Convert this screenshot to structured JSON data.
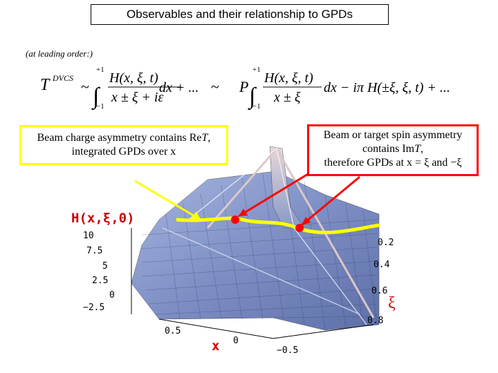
{
  "title": "Observables and their relationship to GPDs",
  "note": "(at leading order:)",
  "formula": {
    "lhs": "T",
    "lhs_sup": "DVCS",
    "sim": "~",
    "int_upper": "+1",
    "int_lower": "−1",
    "frac1_num": "H(x, ξ, t)",
    "frac1_den": "x ± ξ + iε",
    "frac1_dx": "dx + ...",
    "sim2": "~",
    "P": "P",
    "frac2_num": "H(x, ξ, t)",
    "frac2_den": "x ± ξ",
    "frac2_rest": "dx − iπ H(±ξ, ξ, t) + ..."
  },
  "callout_left": {
    "line1": "Beam charge asymmetry contains Re",
    "line1_T": "T",
    "line1_end": ",",
    "line2": "integrated GPDs over x"
  },
  "callout_right": {
    "line1": "Beam or target spin asymmetry",
    "line2": "contains Im",
    "line2_T": "T",
    "line2_end": ",",
    "line3": "therefore GPDs at x = ξ and −ξ"
  },
  "plot": {
    "title": "H(x,ξ,0)",
    "z_ticks": [
      "10",
      "7.5",
      "5",
      "2.5",
      "0",
      "−2.5"
    ],
    "xi_ticks": [
      "0.2",
      "0.4",
      "0.6",
      "0.8"
    ],
    "x_ticks": [
      "0.5",
      "0",
      "−0.5"
    ],
    "x_label": "x",
    "xi_label": "ξ"
  },
  "colors": {
    "surface": "#7d8fc4",
    "highlight": "#ffff00",
    "callout_left_border": "#ffff00",
    "callout_right_border": "#ff0000",
    "arrow_left": "#ffff00",
    "arrow_right": "#ff0000",
    "label_red": "#cc0000"
  }
}
